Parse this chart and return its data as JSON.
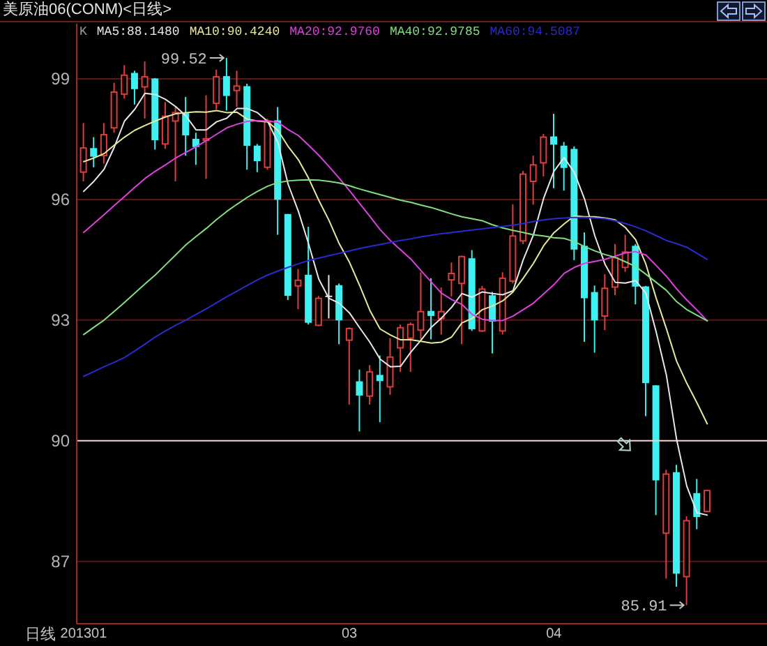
{
  "chart_data": {
    "type": "candlestick",
    "title": "美原油06(CONM)<日线>",
    "xlabel": "日线",
    "categories": [
      "201301",
      null,
      null,
      null,
      null,
      null,
      null,
      null,
      null,
      null,
      null,
      null,
      null,
      null,
      null,
      null,
      null,
      null,
      null,
      null,
      null,
      null,
      null,
      null,
      null,
      null,
      "03",
      null,
      null,
      null,
      null,
      null,
      null,
      null,
      null,
      null,
      null,
      null,
      null,
      null,
      null,
      null,
      null,
      null,
      null,
      null,
      "04",
      null,
      null,
      null,
      null,
      null,
      null,
      null,
      null,
      null,
      null,
      null,
      null,
      null,
      null,
      null
    ],
    "series": [
      {
        "ohlc": [
          [
            96.68,
            97.9,
            96.45,
            97.28
          ],
          [
            97.26,
            97.55,
            96.8,
            97.08
          ],
          [
            97.09,
            97.9,
            96.89,
            97.61
          ],
          [
            97.78,
            98.9,
            97.66,
            98.67
          ],
          [
            98.62,
            99.34,
            98.51,
            99.09
          ],
          [
            99.13,
            99.2,
            98.36,
            98.76
          ],
          [
            98.8,
            99.43,
            98.01,
            99.05
          ],
          [
            98.99,
            99.02,
            97.24,
            97.49
          ],
          [
            97.38,
            98.42,
            97.26,
            98.07
          ],
          [
            97.95,
            98.3,
            96.45,
            98.16
          ],
          [
            98.13,
            98.55,
            97.09,
            97.61
          ],
          [
            97.49,
            97.66,
            96.86,
            97.32
          ],
          [
            97.47,
            98.59,
            96.51,
            97.51
          ],
          [
            98.39,
            99.23,
            98.24,
            99.05
          ],
          [
            99.05,
            99.52,
            98.21,
            98.59
          ],
          [
            98.71,
            99.2,
            98.3,
            98.82
          ],
          [
            98.8,
            98.88,
            96.74,
            97.35
          ],
          [
            97.32,
            97.38,
            96.68,
            96.97
          ],
          [
            96.8,
            98.01,
            96.74,
            97.95
          ],
          [
            97.95,
            98.3,
            95.12,
            96.01
          ],
          [
            95.62,
            95.64,
            93.5,
            93.62
          ],
          [
            93.85,
            94.27,
            93.27,
            93.99
          ],
          [
            94.11,
            95.32,
            92.89,
            92.95
          ],
          [
            92.87,
            93.6,
            92.85,
            93.54
          ],
          [
            93.59,
            94.12,
            93.04,
            93.59
          ],
          [
            93.85,
            93.91,
            92.4,
            93.01
          ],
          [
            92.5,
            92.82,
            90.9,
            92.79
          ],
          [
            91.46,
            91.77,
            90.23,
            91.14
          ],
          [
            91.11,
            91.88,
            90.9,
            91.71
          ],
          [
            91.62,
            92.12,
            90.46,
            91.5
          ],
          [
            91.34,
            92.55,
            91.14,
            92.08
          ],
          [
            92.31,
            92.89,
            91.71,
            92.81
          ],
          [
            92.55,
            92.94,
            91.71,
            92.89
          ],
          [
            92.75,
            94.19,
            92.52,
            93.21
          ],
          [
            93.21,
            94.04,
            92.52,
            93.12
          ],
          [
            93.04,
            93.81,
            92.64,
            93.21
          ],
          [
            94.0,
            94.43,
            93.59,
            94.16
          ],
          [
            93.91,
            94.6,
            92.4,
            94.58
          ],
          [
            94.52,
            94.74,
            92.73,
            92.79
          ],
          [
            92.73,
            93.85,
            92.7,
            93.77
          ],
          [
            93.6,
            93.7,
            92.17,
            92.98
          ],
          [
            92.73,
            94.19,
            92.64,
            94.04
          ],
          [
            93.97,
            95.88,
            93.91,
            95.09
          ],
          [
            94.97,
            96.71,
            94.89,
            96.63
          ],
          [
            96.45,
            97.09,
            95.87,
            96.86
          ],
          [
            96.91,
            97.63,
            96.57,
            97.55
          ],
          [
            97.55,
            98.13,
            96.28,
            97.38
          ],
          [
            97.32,
            97.43,
            96.22,
            96.8
          ],
          [
            97.24,
            97.32,
            94.49,
            94.77
          ],
          [
            94.83,
            95.18,
            92.46,
            93.56
          ],
          [
            93.68,
            93.86,
            92.19,
            93.01
          ],
          [
            93.1,
            94.14,
            92.75,
            93.79
          ],
          [
            93.82,
            94.89,
            93.62,
            94.55
          ],
          [
            94.31,
            95.12,
            94.2,
            94.69
          ],
          [
            94.83,
            94.89,
            93.39,
            93.85
          ],
          [
            93.82,
            93.85,
            90.61,
            91.45
          ],
          [
            91.36,
            91.38,
            88.15,
            89.03
          ],
          [
            87.7,
            89.28,
            86.57,
            89.17
          ],
          [
            89.2,
            89.4,
            86.37,
            86.71
          ],
          [
            86.62,
            88.12,
            85.91,
            88.01
          ],
          [
            88.68,
            89.05,
            87.8,
            88.12
          ],
          [
            88.24,
            88.78,
            88.22,
            88.76
          ]
        ],
        "colors": [
          "#e03c3c",
          "#40f0f0",
          "#e03c3c",
          "#e03c3c",
          "#e03c3c",
          "#40f0f0",
          "#e03c3c",
          "#40f0f0",
          "#e03c3c",
          "#e03c3c",
          "#40f0f0",
          "#40f0f0",
          "#e03c3c",
          "#e03c3c",
          "#40f0f0",
          "#e03c3c",
          "#40f0f0",
          "#40f0f0",
          "#e03c3c",
          "#40f0f0",
          "#40f0f0",
          "#e03c3c",
          "#40f0f0",
          "#e03c3c",
          "#e8e8e8",
          "#40f0f0",
          "#e03c3c",
          "#40f0f0",
          "#e03c3c",
          "#40f0f0",
          "#e03c3c",
          "#e03c3c",
          "#e03c3c",
          "#e03c3c",
          "#40f0f0",
          "#e03c3c",
          "#e03c3c",
          "#e03c3c",
          "#40f0f0",
          "#e03c3c",
          "#40f0f0",
          "#e03c3c",
          "#e03c3c",
          "#e03c3c",
          "#e03c3c",
          "#e03c3c",
          "#40f0f0",
          "#40f0f0",
          "#40f0f0",
          "#40f0f0",
          "#40f0f0",
          "#e03c3c",
          "#e03c3c",
          "#e03c3c",
          "#40f0f0",
          "#40f0f0",
          "#40f0f0",
          "#e03c3c",
          "#40f0f0",
          "#e03c3c",
          "#40f0f0",
          "#e03c3c"
        ],
        "value_labels": [
          null,
          null,
          null,
          null,
          null,
          null,
          null,
          null,
          null,
          null,
          null,
          null,
          null,
          null,
          "99.52",
          null,
          null,
          null,
          null,
          null,
          null,
          null,
          null,
          null,
          null,
          null,
          null,
          null,
          null,
          null,
          null,
          null,
          null,
          null,
          null,
          null,
          null,
          null,
          null,
          null,
          null,
          null,
          null,
          null,
          null,
          null,
          null,
          null,
          null,
          null,
          null,
          null,
          null,
          null,
          null,
          null,
          null,
          null,
          null,
          "85.91",
          null,
          null
        ]
      },
      {
        "name": "MA5:88.1480",
        "type": "line",
        "color": "#e8e8e8",
        "values": [
          96.2,
          96.45,
          96.75,
          97.3,
          97.95,
          98.24,
          98.64,
          98.61,
          98.49,
          98.31,
          98.08,
          97.73,
          97.73,
          97.93,
          98.02,
          98.26,
          98.26,
          98.16,
          97.94,
          97.42,
          96.38,
          95.71,
          94.9,
          94.02,
          93.54,
          93.42,
          93.18,
          92.81,
          92.45,
          92.03,
          91.84,
          91.85,
          92.2,
          92.5,
          92.82,
          93.05,
          93.32,
          93.66,
          93.57,
          93.7,
          93.66,
          93.63,
          93.73,
          94.5,
          95.12,
          96.03,
          96.7,
          97.04,
          96.67,
          96.01,
          95.1,
          94.39,
          93.94,
          93.92,
          93.98,
          93.67,
          92.71,
          91.64,
          90.04,
          88.87,
          88.21,
          88.15
        ]
      },
      {
        "name": "MA10:90.4240",
        "type": "line",
        "color": "#e8e89c",
        "values": [
          96.94,
          97.03,
          97.14,
          97.35,
          97.55,
          97.72,
          97.84,
          97.95,
          98.05,
          98.13,
          98.16,
          98.18,
          98.17,
          98.21,
          98.16,
          98.17,
          98.0,
          97.95,
          97.93,
          97.72,
          97.32,
          96.99,
          96.53,
          95.98,
          95.48,
          94.9,
          94.44,
          93.86,
          93.24,
          92.78,
          92.63,
          92.51,
          92.51,
          92.47,
          92.43,
          92.45,
          92.58,
          92.93,
          93.04,
          93.26,
          93.35,
          93.48,
          93.7,
          94.04,
          94.41,
          94.85,
          95.17,
          95.39,
          95.59,
          95.57,
          95.57,
          95.54,
          95.49,
          95.3,
          95.0,
          94.39,
          93.55,
          92.79,
          91.98,
          91.43,
          90.94,
          90.42
        ]
      },
      {
        "name": "MA20:92.9760",
        "type": "line",
        "color": "#e040e0",
        "values": [
          95.18,
          95.4,
          95.62,
          95.85,
          96.07,
          96.3,
          96.52,
          96.7,
          96.86,
          97.03,
          97.17,
          97.31,
          97.46,
          97.62,
          97.78,
          97.87,
          97.94,
          97.96,
          97.95,
          97.92,
          97.74,
          97.59,
          97.35,
          97.1,
          96.82,
          96.53,
          96.22,
          95.9,
          95.58,
          95.25,
          94.98,
          94.75,
          94.52,
          94.23,
          93.95,
          93.67,
          93.51,
          93.39,
          93.14,
          93.02,
          92.99,
          92.99,
          93.1,
          93.26,
          93.42,
          93.65,
          93.88,
          94.16,
          94.31,
          94.41,
          94.46,
          94.51,
          94.59,
          94.67,
          94.7,
          94.62,
          94.36,
          94.09,
          93.78,
          93.5,
          93.25,
          92.98
        ]
      },
      {
        "name": "MA40:92.9785",
        "type": "line",
        "color": "#80e080",
        "values": [
          92.64,
          92.82,
          93.0,
          93.22,
          93.44,
          93.67,
          93.9,
          94.12,
          94.37,
          94.62,
          94.87,
          95.08,
          95.28,
          95.5,
          95.7,
          95.88,
          96.05,
          96.2,
          96.33,
          96.42,
          96.46,
          96.48,
          96.49,
          96.48,
          96.45,
          96.41,
          96.34,
          96.26,
          96.19,
          96.12,
          96.05,
          95.98,
          95.93,
          95.86,
          95.8,
          95.72,
          95.64,
          95.57,
          95.52,
          95.47,
          95.37,
          95.29,
          95.23,
          95.18,
          95.12,
          95.09,
          95.05,
          95.03,
          94.95,
          94.83,
          94.72,
          94.63,
          94.56,
          94.45,
          94.33,
          94.14,
          93.94,
          93.74,
          93.46,
          93.26,
          93.12,
          92.98
        ]
      },
      {
        "name": "MA60:94.5087",
        "type": "line",
        "color": "#2a2ad0",
        "values": [
          91.6,
          91.72,
          91.84,
          91.95,
          92.07,
          92.23,
          92.4,
          92.58,
          92.73,
          92.87,
          93.0,
          93.14,
          93.28,
          93.43,
          93.58,
          93.72,
          93.86,
          94.0,
          94.12,
          94.22,
          94.31,
          94.4,
          94.48,
          94.54,
          94.6,
          94.66,
          94.72,
          94.78,
          94.83,
          94.88,
          94.93,
          94.98,
          95.02,
          95.07,
          95.11,
          95.15,
          95.18,
          95.21,
          95.24,
          95.27,
          95.3,
          95.33,
          95.36,
          95.4,
          95.45,
          95.49,
          95.52,
          95.54,
          95.55,
          95.55,
          95.54,
          95.52,
          95.47,
          95.4,
          95.32,
          95.22,
          95.1,
          94.98,
          94.9,
          94.81,
          94.66,
          94.51
        ]
      }
    ],
    "ylim": [
      85.45,
      100.37
    ],
    "yticks": [
      87,
      90,
      93,
      96,
      99
    ],
    "grid": "y",
    "legend": "top left",
    "ref_lines": [
      {
        "axis": "y",
        "value": 90,
        "color": "#e8d4d4"
      }
    ],
    "annotations": [
      "K"
    ]
  }
}
